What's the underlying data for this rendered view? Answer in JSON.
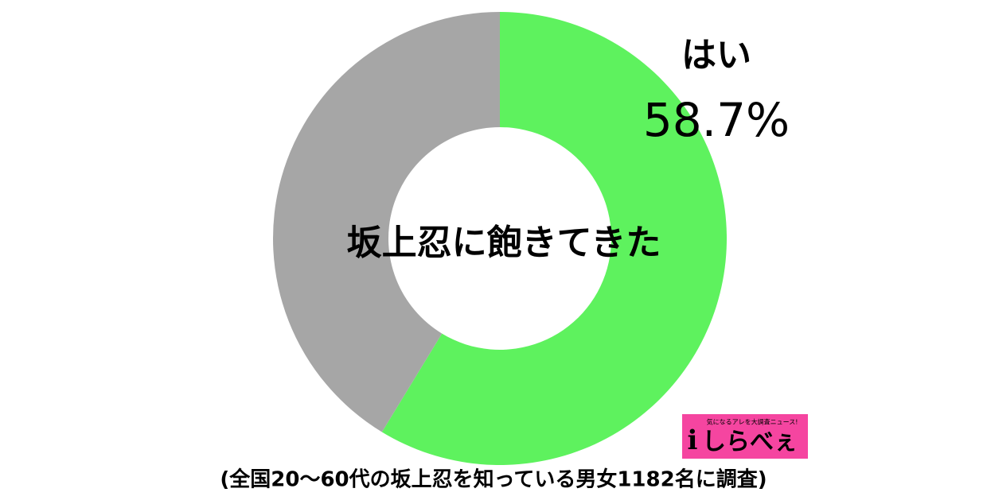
{
  "chart_data": {
    "type": "donut",
    "title": "坂上忍に飽きてきた",
    "categories": [
      "はい",
      null
    ],
    "values": [
      58.7,
      41.3
    ],
    "value_labels": [
      "58.7%",
      null
    ],
    "colors": [
      "#5ef25e",
      "#a6a6a6"
    ],
    "note": "(全国20〜60代の坂上忍を知っている男女1182名に調査)"
  },
  "logo": {
    "tagline": "気になるアレを大調査ニュース!",
    "name": "しらべぇ"
  }
}
